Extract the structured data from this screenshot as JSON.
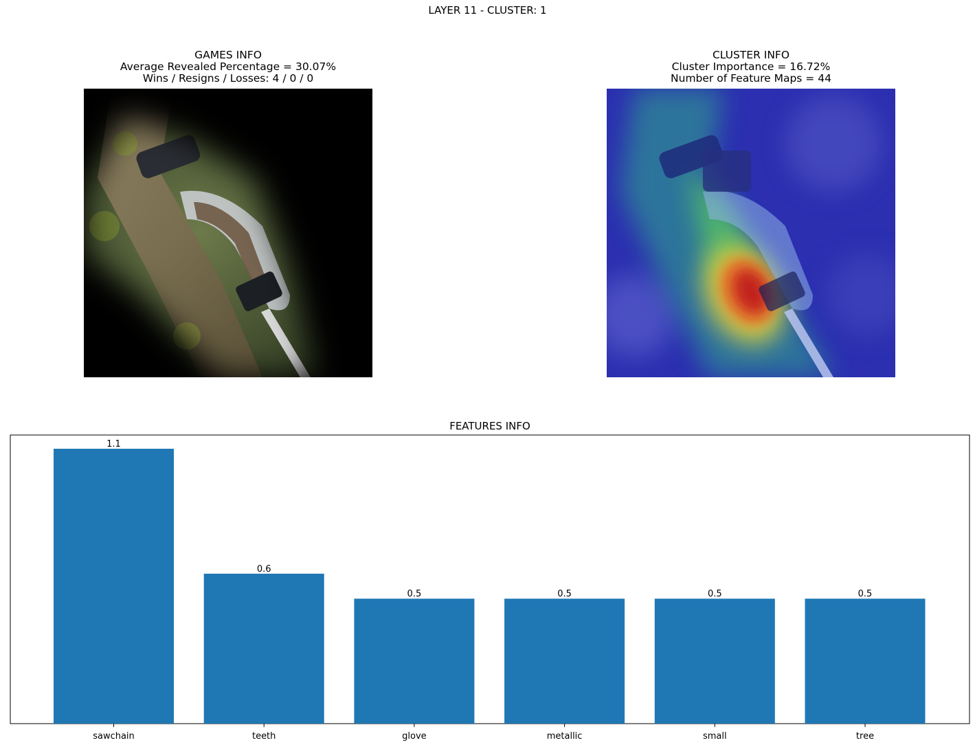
{
  "figure": {
    "suptitle": "LAYER 11 - CLUSTER: 1"
  },
  "games_info": {
    "title": "GAMES INFO",
    "line1": "Average Revealed Percentage = 30.07%",
    "line2": "Wins / Resigns / Losses: 4 / 0 / 0"
  },
  "cluster_info": {
    "title": "CLUSTER INFO",
    "line1": "Cluster Importance = 16.72%",
    "line2": "Number of Feature Maps = 44"
  },
  "chart_data": {
    "type": "bar",
    "title": "FEATURES INFO",
    "categories": [
      "sawchain",
      "teeth",
      "glove",
      "metallic",
      "small",
      "tree"
    ],
    "values": [
      1.1,
      0.6,
      0.5,
      0.5,
      0.5,
      0.5
    ],
    "value_labels": [
      "1.1",
      "0.6",
      "0.5",
      "0.5",
      "0.5",
      "0.5"
    ],
    "ylim": [
      0,
      1.1
    ],
    "bar_color": "#1f77b4",
    "grid": false,
    "y_ticks_visible": false
  },
  "colors": {
    "bar": "#1f77b4",
    "heat_low": "#2b2fb0",
    "heat_mid": "#3ccf6e",
    "heat_high": "#d8261c"
  }
}
